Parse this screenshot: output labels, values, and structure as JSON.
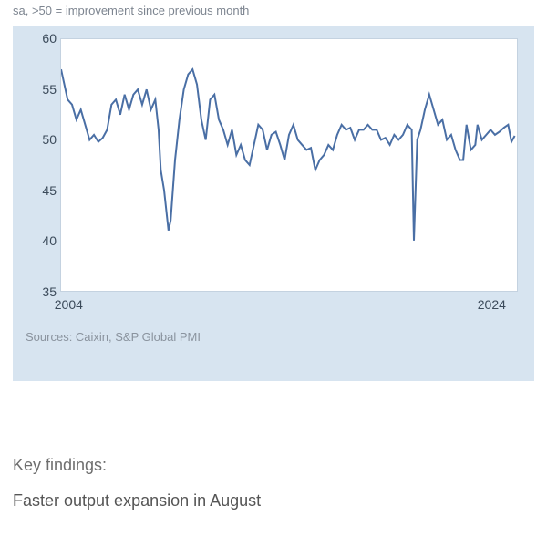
{
  "subtitle": "sa, >50 = improvement since previous month",
  "sources_label": "Sources: Caixin, S&P Global PMI",
  "findings": {
    "heading": "Key findings:",
    "line1": "Faster output expansion in August"
  },
  "chart": {
    "type": "line",
    "background_color": "#d7e4f0",
    "plot_background": "#ffffff",
    "border_color": "#c4d2e0",
    "line_color": "#4a6fa5",
    "line_width": 2,
    "axis_text_color": "#3b4a5a",
    "axis_fontsize": 14,
    "ylim": [
      35,
      60
    ],
    "yticks": [
      35,
      40,
      45,
      50,
      55,
      60
    ],
    "xlim": [
      2004,
      2024.8
    ],
    "xticks": [
      2004,
      2024
    ],
    "xtick_labels": [
      "2004",
      "2024"
    ],
    "series": [
      {
        "x": 2004.0,
        "y": 57.0
      },
      {
        "x": 2004.1,
        "y": 56.0
      },
      {
        "x": 2004.3,
        "y": 54.0
      },
      {
        "x": 2004.5,
        "y": 53.5
      },
      {
        "x": 2004.7,
        "y": 52.0
      },
      {
        "x": 2004.9,
        "y": 53.0
      },
      {
        "x": 2005.1,
        "y": 51.5
      },
      {
        "x": 2005.3,
        "y": 50.0
      },
      {
        "x": 2005.5,
        "y": 50.5
      },
      {
        "x": 2005.7,
        "y": 49.8
      },
      {
        "x": 2005.9,
        "y": 50.2
      },
      {
        "x": 2006.1,
        "y": 51.0
      },
      {
        "x": 2006.3,
        "y": 53.5
      },
      {
        "x": 2006.5,
        "y": 54.0
      },
      {
        "x": 2006.7,
        "y": 52.5
      },
      {
        "x": 2006.9,
        "y": 54.5
      },
      {
        "x": 2007.1,
        "y": 53.0
      },
      {
        "x": 2007.3,
        "y": 54.5
      },
      {
        "x": 2007.5,
        "y": 55.0
      },
      {
        "x": 2007.7,
        "y": 53.5
      },
      {
        "x": 2007.9,
        "y": 55.0
      },
      {
        "x": 2008.1,
        "y": 53.0
      },
      {
        "x": 2008.3,
        "y": 54.0
      },
      {
        "x": 2008.45,
        "y": 51.0
      },
      {
        "x": 2008.55,
        "y": 47.0
      },
      {
        "x": 2008.7,
        "y": 45.0
      },
      {
        "x": 2008.9,
        "y": 41.0
      },
      {
        "x": 2009.0,
        "y": 42.0
      },
      {
        "x": 2009.2,
        "y": 48.0
      },
      {
        "x": 2009.4,
        "y": 52.0
      },
      {
        "x": 2009.6,
        "y": 55.0
      },
      {
        "x": 2009.8,
        "y": 56.5
      },
      {
        "x": 2010.0,
        "y": 57.0
      },
      {
        "x": 2010.2,
        "y": 55.5
      },
      {
        "x": 2010.4,
        "y": 52.0
      },
      {
        "x": 2010.6,
        "y": 50.0
      },
      {
        "x": 2010.8,
        "y": 54.0
      },
      {
        "x": 2011.0,
        "y": 54.5
      },
      {
        "x": 2011.2,
        "y": 52.0
      },
      {
        "x": 2011.4,
        "y": 51.0
      },
      {
        "x": 2011.6,
        "y": 49.5
      },
      {
        "x": 2011.8,
        "y": 51.0
      },
      {
        "x": 2012.0,
        "y": 48.5
      },
      {
        "x": 2012.2,
        "y": 49.5
      },
      {
        "x": 2012.4,
        "y": 48.0
      },
      {
        "x": 2012.6,
        "y": 47.5
      },
      {
        "x": 2012.8,
        "y": 49.5
      },
      {
        "x": 2013.0,
        "y": 51.5
      },
      {
        "x": 2013.2,
        "y": 51.0
      },
      {
        "x": 2013.4,
        "y": 49.0
      },
      {
        "x": 2013.6,
        "y": 50.5
      },
      {
        "x": 2013.8,
        "y": 50.8
      },
      {
        "x": 2014.0,
        "y": 49.5
      },
      {
        "x": 2014.2,
        "y": 48.0
      },
      {
        "x": 2014.4,
        "y": 50.5
      },
      {
        "x": 2014.6,
        "y": 51.5
      },
      {
        "x": 2014.8,
        "y": 50.0
      },
      {
        "x": 2015.0,
        "y": 49.5
      },
      {
        "x": 2015.2,
        "y": 49.0
      },
      {
        "x": 2015.4,
        "y": 49.2
      },
      {
        "x": 2015.6,
        "y": 47.0
      },
      {
        "x": 2015.8,
        "y": 48.0
      },
      {
        "x": 2016.0,
        "y": 48.5
      },
      {
        "x": 2016.2,
        "y": 49.5
      },
      {
        "x": 2016.4,
        "y": 49.0
      },
      {
        "x": 2016.6,
        "y": 50.5
      },
      {
        "x": 2016.8,
        "y": 51.5
      },
      {
        "x": 2017.0,
        "y": 51.0
      },
      {
        "x": 2017.2,
        "y": 51.2
      },
      {
        "x": 2017.4,
        "y": 50.0
      },
      {
        "x": 2017.6,
        "y": 51.0
      },
      {
        "x": 2017.8,
        "y": 51.0
      },
      {
        "x": 2018.0,
        "y": 51.5
      },
      {
        "x": 2018.2,
        "y": 51.0
      },
      {
        "x": 2018.4,
        "y": 51.0
      },
      {
        "x": 2018.6,
        "y": 50.0
      },
      {
        "x": 2018.8,
        "y": 50.2
      },
      {
        "x": 2019.0,
        "y": 49.5
      },
      {
        "x": 2019.2,
        "y": 50.5
      },
      {
        "x": 2019.4,
        "y": 50.0
      },
      {
        "x": 2019.6,
        "y": 50.5
      },
      {
        "x": 2019.8,
        "y": 51.5
      },
      {
        "x": 2020.0,
        "y": 51.0
      },
      {
        "x": 2020.1,
        "y": 40.0
      },
      {
        "x": 2020.25,
        "y": 50.0
      },
      {
        "x": 2020.4,
        "y": 51.0
      },
      {
        "x": 2020.6,
        "y": 53.0
      },
      {
        "x": 2020.8,
        "y": 54.5
      },
      {
        "x": 2021.0,
        "y": 53.0
      },
      {
        "x": 2021.2,
        "y": 51.5
      },
      {
        "x": 2021.4,
        "y": 52.0
      },
      {
        "x": 2021.6,
        "y": 50.0
      },
      {
        "x": 2021.8,
        "y": 50.5
      },
      {
        "x": 2022.0,
        "y": 49.0
      },
      {
        "x": 2022.2,
        "y": 48.0
      },
      {
        "x": 2022.35,
        "y": 48.0
      },
      {
        "x": 2022.5,
        "y": 51.5
      },
      {
        "x": 2022.7,
        "y": 49.0
      },
      {
        "x": 2022.9,
        "y": 49.5
      },
      {
        "x": 2023.0,
        "y": 51.5
      },
      {
        "x": 2023.2,
        "y": 50.0
      },
      {
        "x": 2023.4,
        "y": 50.5
      },
      {
        "x": 2023.6,
        "y": 51.0
      },
      {
        "x": 2023.8,
        "y": 50.5
      },
      {
        "x": 2024.0,
        "y": 50.8
      },
      {
        "x": 2024.2,
        "y": 51.2
      },
      {
        "x": 2024.4,
        "y": 51.5
      },
      {
        "x": 2024.55,
        "y": 49.8
      },
      {
        "x": 2024.7,
        "y": 50.4
      }
    ]
  }
}
